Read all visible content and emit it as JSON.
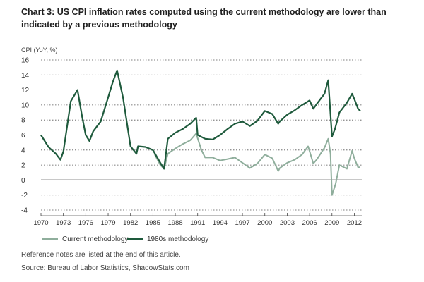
{
  "chart_data": {
    "type": "line",
    "title": "Chart 3: US CPI inflation rates computed using the current methodology are lower than indicated by a previous methodology",
    "ylabel": "CPI (YoY, %)",
    "xlabel": "",
    "ylim": [
      -4,
      16
    ],
    "xlim": [
      1970,
      2013
    ],
    "y_ticks": [
      "16",
      "14",
      "12",
      "10",
      "8",
      "6",
      "4",
      "2",
      "0",
      "-2",
      "-4"
    ],
    "x_ticks": [
      "1970",
      "1973",
      "1976",
      "1979",
      "1982",
      "1985",
      "1988",
      "1991",
      "1994",
      "1997",
      "2000",
      "2003",
      "2006",
      "2009",
      "2012"
    ],
    "grid": true,
    "legend_position": "bottom-left",
    "series": [
      {
        "name": "Current methodology",
        "color": "#8fae9c",
        "x": [
          1985.2,
          1986,
          1986.5,
          1987,
          1988,
          1989,
          1990,
          1990.8,
          1991.5,
          1992,
          1993,
          1994,
          1995,
          1996,
          1997,
          1998,
          1999,
          2000,
          2001,
          2001.8,
          2002,
          2003,
          2004,
          2005,
          2005.8,
          2006.5,
          2007,
          2008,
          2008.5,
          2008.8,
          2009,
          2009.5,
          2010,
          2011,
          2011.7,
          2012,
          2012.5,
          2012.8
        ],
        "values": [
          3.5,
          2.0,
          1.5,
          3.5,
          4.2,
          4.8,
          5.3,
          6.2,
          4.0,
          3.0,
          3.0,
          2.6,
          2.8,
          3.0,
          2.3,
          1.6,
          2.2,
          3.4,
          2.9,
          1.2,
          1.6,
          2.3,
          2.7,
          3.4,
          4.5,
          2.2,
          2.8,
          4.3,
          5.5,
          3.5,
          -2.0,
          -0.5,
          2.0,
          1.5,
          3.9,
          2.9,
          1.7,
          1.7
        ]
      },
      {
        "name": "1980s methodology",
        "color": "#1e5a3c",
        "x": [
          1970,
          1971,
          1972,
          1972.6,
          1973,
          1974,
          1974.9,
          1975.5,
          1976,
          1976.5,
          1977,
          1978,
          1979,
          1979.6,
          1980.2,
          1981,
          1982,
          1982.8,
          1983,
          1984,
          1985,
          1986,
          1986.5,
          1987,
          1988,
          1989,
          1990,
          1990.8,
          1991,
          1992,
          1993,
          1994,
          1995,
          1996,
          1997,
          1998,
          1999,
          2000,
          2001,
          2001.8,
          2002,
          2003,
          2004,
          2005,
          2006,
          2006.5,
          2007,
          2008,
          2008.5,
          2009,
          2009.4,
          2010,
          2011,
          2011.7,
          2012,
          2012.5,
          2012.8
        ],
        "values": [
          6.0,
          4.4,
          3.5,
          2.7,
          3.8,
          10.5,
          12.0,
          8.5,
          6.0,
          5.2,
          6.5,
          7.8,
          11.0,
          13.0,
          14.6,
          11.0,
          4.5,
          3.5,
          4.5,
          4.4,
          4.0,
          2.3,
          1.5,
          5.5,
          6.3,
          6.8,
          7.5,
          8.3,
          6.0,
          5.5,
          5.4,
          6.0,
          6.8,
          7.5,
          7.8,
          7.2,
          7.9,
          9.2,
          8.8,
          7.5,
          7.8,
          8.7,
          9.3,
          10.0,
          10.6,
          9.5,
          10.2,
          11.5,
          13.3,
          5.8,
          6.8,
          9.0,
          10.3,
          11.5,
          10.8,
          9.5,
          9.2
        ]
      }
    ]
  },
  "footnotes": {
    "note": "Reference notes are listed at the end of this article.",
    "source": "Source: Bureau of Labor Statistics, ShadowStats.com"
  }
}
